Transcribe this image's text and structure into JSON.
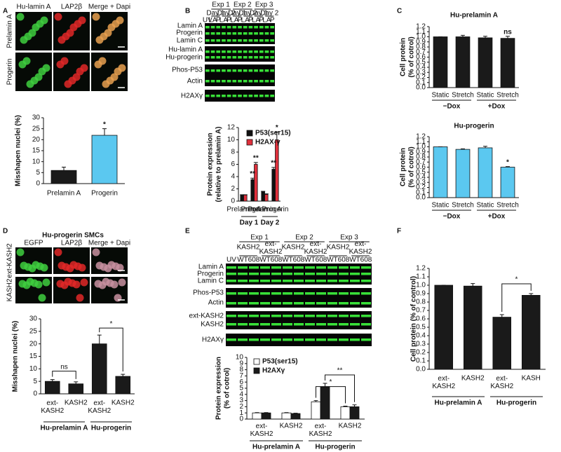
{
  "figure": {
    "panel_labels": [
      "A",
      "B",
      "C",
      "D",
      "E",
      "F"
    ],
    "a_images": {
      "columns": [
        "Hu-lamin A",
        "LAP2β",
        "Merge + Dapi"
      ],
      "rows": [
        "Prelamin A",
        "Progerin"
      ]
    },
    "b_blot": {
      "uv": "UV",
      "experiments": [
        "Exp 1",
        "Exp 2",
        "Exp 3"
      ],
      "days": [
        "Day 1",
        "Day 2",
        "Day 1",
        "Day 2",
        "Day 1",
        "Day 2"
      ],
      "lanes": [
        "LA",
        "P",
        "LA",
        "P",
        "LA",
        "P",
        "LA",
        "P",
        "LA",
        "P",
        "LA",
        "P"
      ],
      "rows": [
        "Lamin A",
        "Progerin",
        "Lamin C",
        "Hu-lamin A",
        "Hu-progerin",
        "Phos-P53",
        "Actin",
        "H2AXγ"
      ]
    },
    "d_images": {
      "title": "Hu-progerin SMCs",
      "columns": [
        "EGFP",
        "LAP2β",
        "Merge + Dapi"
      ],
      "rows": [
        "ext-KASH2",
        "KASH2"
      ]
    },
    "e_blot": {
      "uv": "UV",
      "experiments": [
        "Exp 1",
        "Exp 2",
        "Exp 3"
      ],
      "constructs": [
        "KASH2",
        "ext-KASH2",
        "KASH2",
        "ext-KASH2",
        "KASH2",
        "ext-KASH2"
      ],
      "lanes": [
        "WT",
        "608",
        "WT",
        "608",
        "WT",
        "608",
        "WT",
        "608",
        "WT",
        "608",
        "WT",
        "608"
      ],
      "rows": [
        "Lamin A",
        "Progerin",
        "Lamin C",
        "Phos-P53",
        "Actin",
        "ext-KASH2",
        "KASH2",
        "H2AXγ"
      ]
    }
  },
  "chart_data": [
    {
      "type": "bar",
      "ylabel": [
        "Misshapen nuclei (%)"
      ],
      "categories": [
        "Prelamin A",
        "Progerin"
      ],
      "values": [
        6,
        22
      ],
      "errors": [
        1.5,
        3
      ],
      "colors": [
        "#1a1a1a",
        "#5bc8f0"
      ],
      "ylim": [
        0,
        30
      ],
      "yticks": [
        0,
        5,
        10,
        15,
        20,
        25,
        30
      ],
      "annotations": [
        "*"
      ]
    },
    {
      "type": "bar",
      "ylabel": [
        "Protein expression",
        "(relative to prelamin A)"
      ],
      "categories": [
        "Prelamin A",
        "Progerin",
        "Prelamin A",
        "Progerin"
      ],
      "groups": [
        "Day 1",
        "Day 2"
      ],
      "series": [
        {
          "name": "P53(ser15)",
          "color": "#111111",
          "values": [
            1,
            3.5,
            1.5,
            5.2
          ],
          "errors": [
            0.05,
            0.25,
            0.1,
            0.3
          ]
        },
        {
          "name": "H2AX-γ",
          "color": "#e0303c",
          "values": [
            1,
            6,
            1.1,
            10
          ],
          "errors": [
            0.05,
            0.3,
            0.08,
            1.3
          ]
        }
      ],
      "ylim": [
        0,
        12
      ],
      "yticks": [
        0,
        2,
        4,
        6,
        8,
        10,
        12
      ],
      "annotations": [
        "**",
        "**",
        "**",
        "*"
      ]
    },
    {
      "type": "bar",
      "title": "Hu-prelamin A",
      "ylabel": [
        "Cell protein",
        "(% of cotrol)"
      ],
      "categories": [
        "Static",
        "Stretch",
        "Static",
        "Stretch"
      ],
      "groups": [
        "−Dox",
        "+Dox"
      ],
      "values": [
        1,
        1,
        0.98,
        0.97
      ],
      "errors": [
        0,
        0.03,
        0.03,
        0.04
      ],
      "color": "#1a1a1a",
      "ylim": [
        0,
        1.2
      ],
      "yticks": [
        {
          "value": 0,
          "label": "0.0"
        },
        0.1,
        0.2,
        0.3,
        0.4,
        0.5,
        0.6,
        0.7,
        0.8,
        0.9,
        {
          "value": 1,
          "label": "1.0"
        },
        1.1,
        1.2
      ],
      "annotations": [
        "ns"
      ]
    },
    {
      "type": "bar",
      "title": "Hu-progerin",
      "ylabel": [
        "Cell protein",
        "(% of cotrol)"
      ],
      "categories": [
        "Static",
        "Stretch",
        "Static",
        "Stretch"
      ],
      "groups": [
        "−Dox",
        "+Dox"
      ],
      "values": [
        1,
        0.95,
        0.98,
        0.6
      ],
      "errors": [
        0,
        0.01,
        0.03,
        0.01
      ],
      "color": "#5bc8f0",
      "ylim": [
        0,
        1.2
      ],
      "yticks": [
        {
          "value": 0,
          "label": "0.0"
        },
        0.1,
        0.2,
        0.3,
        0.4,
        0.5,
        0.6,
        0.7,
        0.8,
        0.9,
        {
          "value": 1,
          "label": "1.0"
        },
        1.1,
        1.2
      ],
      "annotations": [
        "*"
      ]
    },
    {
      "type": "bar",
      "ylabel": [
        "Misshapen nuclei (%)"
      ],
      "categories": [
        "ext-KASH2",
        "KASH2",
        "ext-KASH2",
        "KASH2"
      ],
      "groups": [
        "Hu-prelamin A",
        "Hu-progerin"
      ],
      "values": [
        5,
        4,
        20,
        7
      ],
      "errors": [
        0.7,
        0.8,
        3.5,
        0.8
      ],
      "color": "#1a1a1a",
      "ylim": [
        0,
        30
      ],
      "yticks": [
        0,
        5,
        10,
        15,
        20,
        25,
        30
      ],
      "annotations": [
        "ns",
        "*"
      ]
    },
    {
      "type": "bar",
      "ylabel": [
        "Protein expression",
        "(% of cotrol)"
      ],
      "categories": [
        "ext-KASH2",
        "KASH2",
        "ext-KASH2",
        "KASH2"
      ],
      "groups": [
        "Hu-prelamin A",
        "Hu-progerin"
      ],
      "series": [
        {
          "name": "P53(ser15)",
          "color": "#ffffff",
          "values": [
            1,
            1,
            2.8,
            2
          ],
          "errors": [
            0.05,
            0.05,
            0.2,
            0.1
          ]
        },
        {
          "name": "H2AXγ",
          "color": "#1a1a1a",
          "values": [
            1,
            0.9,
            5.2,
            2
          ],
          "errors": [
            0.05,
            0.05,
            0.6,
            0.3
          ]
        }
      ],
      "ylim": [
        0,
        10
      ],
      "yticks": [
        0,
        1,
        2,
        3,
        4,
        5,
        6,
        7,
        8,
        9,
        10
      ],
      "annotations": [
        "*",
        "**"
      ]
    },
    {
      "type": "bar",
      "ylabel": [
        "Cell protein (% of control)"
      ],
      "categories": [
        "ext-KASH2",
        "KASH2",
        "ext-KASH2",
        "KASH"
      ],
      "groups": [
        "Hu-prelamin A",
        "Hu-progerin"
      ],
      "values": [
        1,
        0.99,
        0.62,
        0.88
      ],
      "errors": [
        0,
        0.03,
        0.03,
        0.02
      ],
      "color": "#1a1a1a",
      "ylim": [
        0,
        1.2
      ],
      "yticks": [
        {
          "value": 0,
          "label": "0.0"
        },
        0.1,
        0.2,
        0.3,
        0.4,
        0.5,
        0.6,
        0.7,
        0.8,
        0.9,
        {
          "value": 1,
          "label": "1.0"
        },
        1.1,
        1.2
      ],
      "annotations": [
        "*"
      ]
    }
  ]
}
